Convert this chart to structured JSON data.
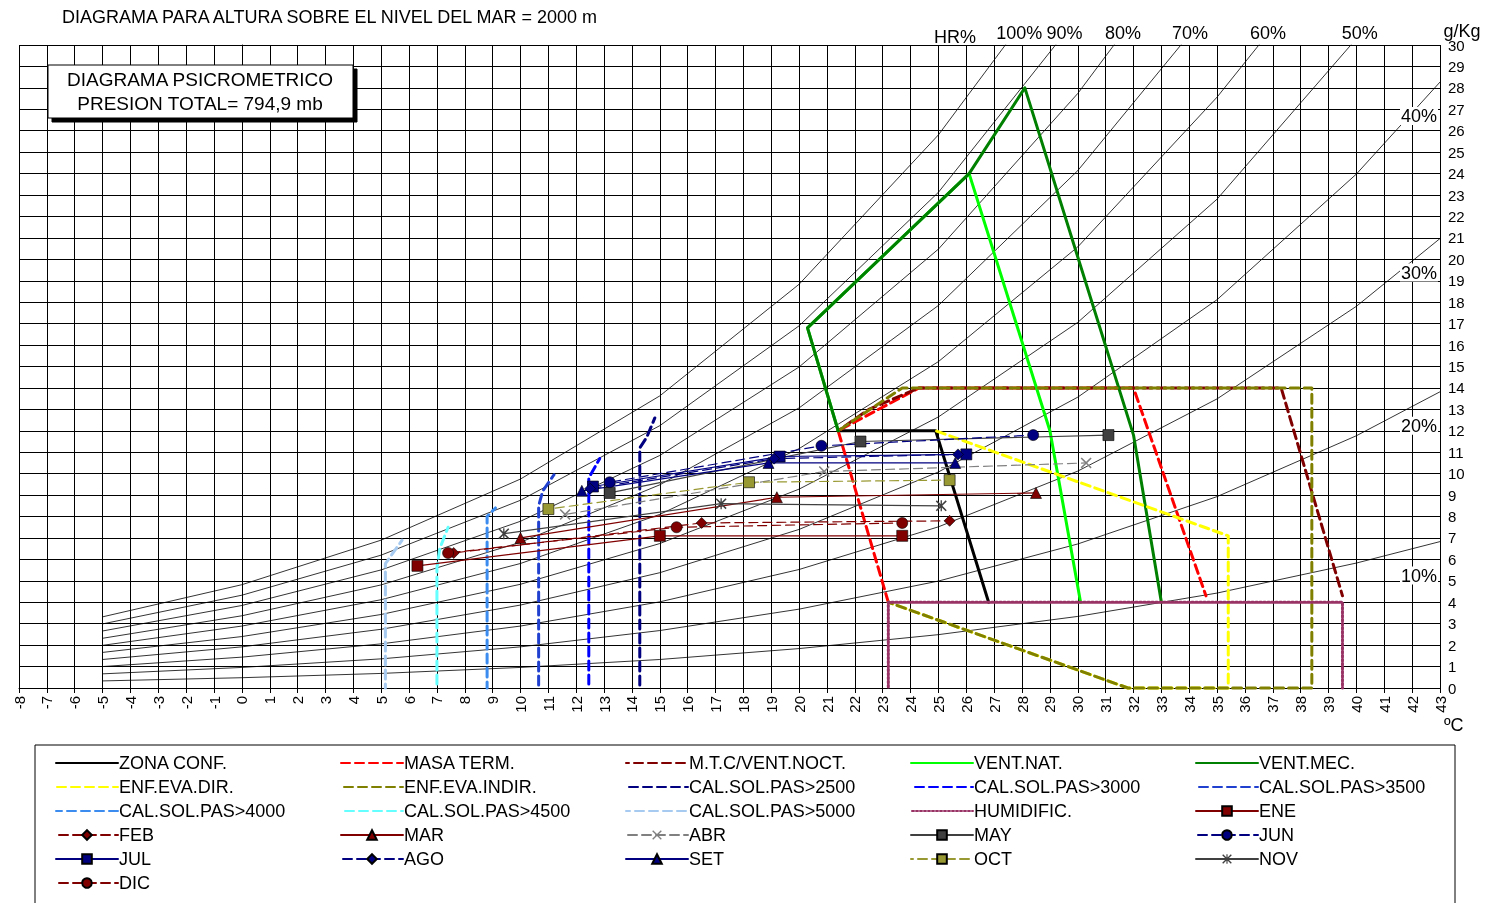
{
  "chart_data": {
    "type": "line",
    "title": "DIAGRAMA PARA ALTURA SOBRE EL NIVEL DEL MAR = 2000 m",
    "subtitle": "DIAGRAMA PSICROMETRICO\nPRESION TOTAL= 794,9 mb",
    "xlabel": "ºC",
    "ylabel": "g/Kg",
    "annotations": [
      "HR%"
    ],
    "xlim": [
      -8,
      43
    ],
    "xticks": [
      -8,
      -7,
      -6,
      -5,
      -4,
      -3,
      -2,
      -1,
      0,
      1,
      2,
      3,
      4,
      5,
      6,
      7,
      8,
      9,
      10,
      11,
      12,
      13,
      14,
      15,
      16,
      17,
      18,
      19,
      20,
      21,
      22,
      23,
      24,
      25,
      26,
      27,
      28,
      29,
      30,
      31,
      32,
      33,
      34,
      35,
      36,
      37,
      38,
      39,
      40,
      41,
      42,
      43
    ],
    "ylim": [
      0,
      30
    ],
    "yticks": [
      0,
      1,
      2,
      3,
      4,
      5,
      6,
      7,
      8,
      9,
      10,
      11,
      12,
      13,
      14,
      15,
      16,
      17,
      18,
      19,
      20,
      21,
      22,
      23,
      24,
      25,
      26,
      27,
      28,
      29,
      30
    ],
    "grid": true,
    "legend": "bottom",
    "series": [
      {
        "name": "100%",
        "color": "#000000",
        "marker": "none",
        "x": [
          -5,
          0,
          5,
          10,
          15,
          20,
          25,
          27.4
        ],
        "values": [
          3.32,
          4.82,
          6.9,
          9.75,
          13.63,
          18.84,
          25.81,
          30
        ]
      },
      {
        "name": "90%",
        "color": "#000000",
        "marker": "none",
        "x": [
          -5,
          0,
          5,
          10,
          15,
          20,
          25,
          29.2
        ],
        "values": [
          2.99,
          4.33,
          6.2,
          8.76,
          12.24,
          16.9,
          23.13,
          30
        ]
      },
      {
        "name": "80%",
        "color": "#000000",
        "marker": "none",
        "x": [
          -5,
          0,
          5,
          10,
          15,
          20,
          25,
          30,
          31.3
        ],
        "values": [
          2.66,
          3.85,
          5.51,
          7.78,
          10.85,
          14.98,
          20.48,
          27.74,
          30
        ]
      },
      {
        "name": "70%",
        "color": "#000000",
        "marker": "none",
        "x": [
          -5,
          0,
          5,
          10,
          15,
          20,
          25,
          30,
          33.7
        ],
        "values": [
          2.32,
          3.37,
          4.81,
          6.8,
          9.48,
          13.07,
          17.85,
          24.14,
          30
        ]
      },
      {
        "name": "60%",
        "color": "#000000",
        "marker": "none",
        "x": [
          -5,
          0,
          5,
          10,
          15,
          20,
          25,
          30,
          35,
          36.5
        ],
        "values": [
          1.99,
          2.89,
          4.12,
          5.81,
          8.1,
          11.17,
          15.23,
          20.58,
          27.57,
          30
        ]
      },
      {
        "name": "50%",
        "color": "#000000",
        "marker": "none",
        "x": [
          -5,
          0,
          5,
          10,
          15,
          20,
          25,
          30,
          35,
          39.8
        ],
        "values": [
          1.66,
          2.4,
          3.43,
          4.84,
          6.74,
          9.28,
          12.65,
          17.06,
          22.81,
          30
        ]
      },
      {
        "name": "40%",
        "color": "#000000",
        "marker": "none",
        "x": [
          -5,
          0,
          5,
          10,
          15,
          20,
          25,
          30,
          35,
          40,
          43
        ],
        "values": [
          1.33,
          1.92,
          2.74,
          3.87,
          5.38,
          7.4,
          10.08,
          13.57,
          18.12,
          23.98,
          28.27
        ]
      },
      {
        "name": "30%",
        "color": "#000000",
        "marker": "none",
        "x": [
          -5,
          0,
          5,
          10,
          15,
          20,
          25,
          30,
          35,
          40,
          43
        ],
        "values": [
          1,
          1.44,
          2.06,
          2.89,
          4.02,
          5.53,
          7.52,
          10.12,
          13.49,
          17.81,
          20.97
        ]
      },
      {
        "name": "20%",
        "color": "#000000",
        "marker": "none",
        "x": [
          -5,
          0,
          5,
          10,
          15,
          20,
          25,
          30,
          35,
          40,
          43
        ],
        "values": [
          0.66,
          0.96,
          1.36,
          1.92,
          2.68,
          3.68,
          4.99,
          6.72,
          8.93,
          11.77,
          13.82
        ]
      },
      {
        "name": "10%",
        "color": "#000000",
        "marker": "none",
        "x": [
          -5,
          0,
          5,
          10,
          15,
          20,
          25,
          30,
          35,
          40,
          43
        ],
        "values": [
          0.33,
          0.48,
          0.68,
          0.96,
          1.33,
          1.84,
          2.49,
          3.34,
          4.43,
          5.83,
          6.83
        ]
      },
      {
        "name": "ZONA CONF.",
        "color": "#000000",
        "marker": "none",
        "line_style": "solid",
        "x": [
          21.4,
          24.9,
          26.8
        ],
        "values": [
          12,
          12,
          4
        ]
      },
      {
        "name": "MASA TERM.",
        "color": "#ff0000",
        "marker": "none",
        "line_style": "dashed",
        "x": [
          23.2,
          21.4,
          24.3,
          32,
          34.6
        ],
        "values": [
          4,
          12,
          14,
          14,
          4.3
        ]
      },
      {
        "name": "M.T.C/VENT.NOCT.",
        "color": "#800000",
        "marker": "none",
        "line_style": "dashed",
        "x": [
          21.4,
          22.5,
          24.3,
          37.3,
          39.5
        ],
        "values": [
          12,
          13,
          14,
          14,
          4.3
        ]
      },
      {
        "name": "VENT.NAT.",
        "color": "#00ff00",
        "marker": "none",
        "line_style": "solid",
        "x": [
          21.4,
          20.3,
          26.1,
          29,
          30.1
        ],
        "values": [
          12,
          16.8,
          24,
          12,
          4
        ]
      },
      {
        "name": "VENT.MEC.",
        "color": "#008000",
        "marker": "none",
        "line_style": "solid",
        "x": [
          21.4,
          20.3,
          26.1,
          28.1,
          32,
          33
        ],
        "values": [
          12,
          16.8,
          24,
          28,
          11.8,
          4
        ]
      },
      {
        "name": "ENF.EVA.DIR.",
        "color": "#ffff00",
        "marker": "none",
        "line_style": "dashed",
        "x": [
          24.9,
          35.4,
          35.4,
          31.8,
          23.2
        ],
        "values": [
          12,
          7.1,
          0,
          0,
          4
        ]
      },
      {
        "name": "ENF.EVA.INDIR.",
        "color": "#808000",
        "marker": "none",
        "line_style": "dashed",
        "x": [
          21.4,
          23.7,
          38.4,
          38.4,
          31.8,
          23.2
        ],
        "values": [
          12,
          14,
          14,
          0,
          0,
          4
        ]
      },
      {
        "name": "CAL.SOL.PAS>2500",
        "color": "#000080",
        "marker": "none",
        "line_style": "dashed",
        "x": [
          14.28,
          14.28,
          14.53,
          14.82
        ],
        "values": [
          0,
          11.2,
          11.7,
          12.6
        ]
      },
      {
        "name": "CAL.SOL.PAS>3000",
        "color": "#0000ff",
        "marker": "none",
        "line_style": "dashed",
        "x": [
          12.45,
          12.45,
          12.84
        ],
        "values": [
          0,
          9.8,
          10.7
        ]
      },
      {
        "name": "CAL.SOL.PAS>3500",
        "color": "#2040d0",
        "marker": "none",
        "line_style": "dashed",
        "x": [
          10.65,
          10.65,
          10.8,
          11.2
        ],
        "values": [
          0,
          8.5,
          9.2,
          9.95
        ]
      },
      {
        "name": "CAL.SOL.PAS>4000",
        "color": "#3c8cf0",
        "marker": "none",
        "line_style": "dashed",
        "x": [
          8.8,
          8.8,
          9.1
        ],
        "values": [
          0,
          8,
          8.4
        ]
      },
      {
        "name": "CAL.SOL.PAS>4500",
        "color": "#66ffff",
        "marker": "none",
        "line_style": "dashed",
        "x": [
          7,
          7,
          7.1,
          7.4
        ],
        "values": [
          0,
          5.6,
          6.5,
          7.5
        ]
      },
      {
        "name": "CAL.SOL.PAS>5000",
        "color": "#a6caf0",
        "marker": "none",
        "line_style": "dashed",
        "x": [
          5.15,
          5.15,
          5.75
        ],
        "values": [
          0,
          5.8,
          6.9
        ]
      },
      {
        "name": "HUMIDIFIC.",
        "color": "#993366",
        "marker": "none",
        "line_style": "dotted",
        "x": [
          23.2,
          23.2,
          39.5,
          39.5
        ],
        "values": [
          0,
          4,
          4,
          0
        ]
      },
      {
        "name": "ENE",
        "color": "#800000",
        "marker": "square",
        "line_style": "solid",
        "x": [
          6.3,
          15,
          23.7
        ],
        "values": [
          5.7,
          7.1,
          7.1
        ]
      },
      {
        "name": "FEB",
        "color": "#800000",
        "marker": "diamond",
        "line_style": "dashed",
        "x": [
          7.6,
          16.5,
          25.4
        ],
        "values": [
          6.3,
          7.7,
          7.8
        ]
      },
      {
        "name": "MAR",
        "color": "#800000",
        "marker": "triangle",
        "line_style": "solid",
        "x": [
          10,
          19.2,
          28.5
        ],
        "values": [
          7,
          8.9,
          9.1
        ]
      },
      {
        "name": "ABR",
        "color": "#808080",
        "marker": "cross",
        "line_style": "dashed",
        "x": [
          11.6,
          20.9,
          30.3
        ],
        "values": [
          8.1,
          10.1,
          10.5
        ]
      },
      {
        "name": "MAY",
        "color": "#404040",
        "marker": "square",
        "line_style": "solid",
        "x": [
          13.2,
          22.2,
          31.1
        ],
        "values": [
          9.1,
          11.5,
          11.8
        ]
      },
      {
        "name": "JUN",
        "color": "#000080",
        "marker": "circle",
        "line_style": "dashed",
        "x": [
          13.2,
          20.8,
          28.4
        ],
        "values": [
          9.6,
          11.3,
          11.8
        ]
      },
      {
        "name": "JUL",
        "color": "#000080",
        "marker": "square",
        "line_style": "solid",
        "x": [
          12.6,
          19.3,
          26
        ],
        "values": [
          9.4,
          10.8,
          10.9
        ]
      },
      {
        "name": "AGO",
        "color": "#000080",
        "marker": "diamond",
        "line_style": "dashed",
        "x": [
          12.5,
          19.1,
          25.7
        ],
        "values": [
          9.3,
          10.7,
          10.9
        ]
      },
      {
        "name": "SET",
        "color": "#000080",
        "marker": "triangle",
        "line_style": "solid",
        "x": [
          12.2,
          18.9,
          25.6
        ],
        "values": [
          9.2,
          10.5,
          10.5
        ]
      },
      {
        "name": "OCT",
        "color": "#999933",
        "marker": "square",
        "line_style": "dashed",
        "x": [
          11,
          18.2,
          25.4
        ],
        "values": [
          8.35,
          9.6,
          9.7
        ]
      },
      {
        "name": "NOV",
        "color": "#404040",
        "marker": "star",
        "line_style": "solid",
        "x": [
          9.4,
          17.2,
          25.1
        ],
        "values": [
          7.2,
          8.6,
          8.5
        ]
      },
      {
        "name": "DIC",
        "color": "#800000",
        "marker": "circle",
        "line_style": "dashed",
        "x": [
          7.4,
          15.6,
          23.7
        ],
        "values": [
          6.3,
          7.5,
          7.7
        ]
      }
    ]
  }
}
